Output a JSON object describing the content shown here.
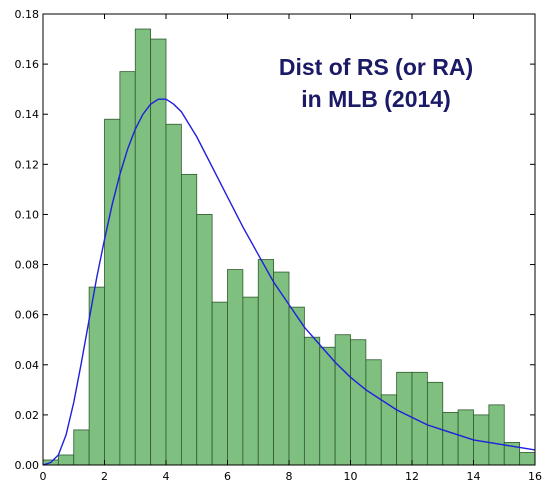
{
  "chart_data": {
    "type": "bar",
    "title_lines": [
      "Dist of RS (or RA)",
      "in MLB (2014)"
    ],
    "title_color": "#1a1a66",
    "xlim": [
      0,
      16
    ],
    "ylim": [
      0,
      0.18
    ],
    "x_ticks": [
      0,
      2,
      4,
      6,
      8,
      10,
      12,
      14,
      16
    ],
    "x_tick_labels": [
      "0",
      "2",
      "4",
      "6",
      "8",
      "10",
      "12",
      "14",
      "16"
    ],
    "y_ticks": [
      0.0,
      0.02,
      0.04,
      0.06,
      0.08,
      0.1,
      0.12,
      0.14,
      0.16,
      0.18
    ],
    "y_tick_labels": [
      "0.00",
      "0.02",
      "0.04",
      "0.06",
      "0.08",
      "0.10",
      "0.12",
      "0.14",
      "0.16",
      "0.18"
    ],
    "bin_width": 0.5,
    "bin_edges_start": [
      0,
      0.5,
      1,
      1.5,
      2,
      2.5,
      3,
      3.5,
      4,
      4.5,
      5,
      5.5,
      6,
      6.5,
      7,
      7.5,
      8,
      8.5,
      9,
      9.5,
      10,
      10.5,
      11,
      11.5,
      12,
      12.5,
      13,
      13.5,
      14,
      14.5,
      15,
      15.5
    ],
    "values": [
      0.002,
      0.004,
      0.014,
      0.071,
      0.138,
      0.157,
      0.174,
      0.17,
      0.136,
      0.116,
      0.1,
      0.065,
      0.078,
      0.067,
      0.082,
      0.077,
      0.063,
      0.051,
      0.047,
      0.052,
      0.05,
      0.042,
      0.028,
      0.037,
      0.037,
      0.033,
      0.021,
      0.022,
      0.02,
      0.024,
      0.009,
      0.005
    ],
    "bar_color": "#7fbf7f",
    "bar_edge_color": "#2e5a2e",
    "fit_curve": {
      "type": "line",
      "color": "#1f1fdd",
      "x": [
        0,
        0.25,
        0.5,
        0.75,
        1.0,
        1.25,
        1.5,
        1.75,
        2.0,
        2.25,
        2.5,
        2.75,
        3.0,
        3.25,
        3.5,
        3.75,
        4.0,
        4.25,
        4.5,
        4.75,
        5.0,
        5.5,
        6.0,
        6.5,
        7.0,
        7.5,
        8.0,
        8.5,
        9.0,
        9.5,
        10.0,
        10.5,
        11.0,
        11.5,
        12.0,
        12.5,
        13.0,
        13.5,
        14.0,
        14.5,
        15.0,
        15.5,
        16.0
      ],
      "y": [
        0.0,
        0.001,
        0.004,
        0.012,
        0.025,
        0.041,
        0.058,
        0.075,
        0.09,
        0.104,
        0.116,
        0.126,
        0.134,
        0.14,
        0.144,
        0.146,
        0.146,
        0.144,
        0.141,
        0.136,
        0.131,
        0.119,
        0.107,
        0.095,
        0.084,
        0.073,
        0.064,
        0.055,
        0.048,
        0.041,
        0.035,
        0.03,
        0.026,
        0.022,
        0.019,
        0.016,
        0.014,
        0.012,
        0.01,
        0.009,
        0.008,
        0.007,
        0.006
      ]
    }
  }
}
